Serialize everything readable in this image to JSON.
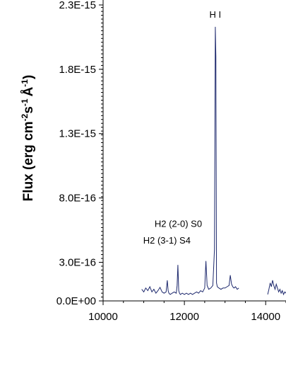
{
  "chart_data": {
    "type": "line",
    "ylabel_parts": [
      "Flux (erg cm",
      "-2",
      "s",
      "-1",
      "Å",
      "-1",
      ")"
    ],
    "xlim": [
      10000,
      14500
    ],
    "ylim": [
      0,
      2.3e-15
    ],
    "xticks": [
      10000,
      12000,
      14000
    ],
    "xtick_labels": [
      "10000",
      "12000",
      "14000"
    ],
    "yticks": [
      0,
      3e-16,
      8e-16,
      1.3e-15,
      1.8e-15,
      2.3e-15
    ],
    "ytick_labels": [
      "0.0E+00",
      "3.0E-16",
      "8.0E-16",
      "1.3E-15",
      "1.8E-15",
      "2.3E-15"
    ],
    "grid": false,
    "series_color": "#1f2a6e",
    "series": [
      {
        "segments": [
          {
            "x": [
              10950,
              11000,
              11050,
              11100,
              11150,
              11200,
              11250,
              11300,
              11350,
              11400,
              11450,
              11500,
              11550,
              11580,
              11600,
              11620,
              11650,
              11700,
              11750,
              11800,
              11820,
              11840,
              11860,
              11880,
              11900,
              11950,
              12000,
              12050,
              12100,
              12150,
              12200,
              12250,
              12300,
              12350,
              12400,
              12450,
              12500,
              12530,
              12560,
              12600,
              12650,
              12700,
              12740,
              12760,
              12775,
              12790,
              12810,
              12850,
              12900,
              12950,
              13000,
              13050,
              13100,
              13130,
              13160,
              13190,
              13220,
              13260,
              13300,
              13340
            ],
            "y": [
              9e-17,
              7e-17,
              1e-16,
              8e-17,
              1.1e-16,
              7e-17,
              9e-17,
              6e-17,
              8e-17,
              1.05e-16,
              7e-17,
              6e-17,
              7e-17,
              1.6e-16,
              8e-17,
              6e-17,
              5e-17,
              6e-17,
              7e-17,
              6e-17,
              1.2e-16,
              2.8e-16,
              8e-17,
              6e-17,
              5e-17,
              6e-17,
              5e-17,
              6e-17,
              5e-17,
              6e-17,
              5e-17,
              6e-17,
              7e-17,
              6e-17,
              8e-17,
              7e-17,
              1e-16,
              3.1e-16,
              1.2e-16,
              9e-17,
              1e-16,
              1.2e-16,
              4e-16,
              2.13e-15,
              1.9e-15,
              1.4e-16,
              1.1e-16,
              1e-16,
              9e-17,
              1e-16,
              1e-16,
              1.1e-16,
              1.2e-16,
              2e-16,
              1.3e-16,
              1.1e-16,
              1e-16,
              1.1e-16,
              9e-17,
              1e-16
            ]
          },
          {
            "x": [
              14050,
              14080,
              14110,
              14140,
              14170,
              14200,
              14230,
              14260,
              14290,
              14320,
              14350,
              14380,
              14410,
              14440,
              14470,
              14500
            ],
            "y": [
              5e-17,
              9e-17,
              1.4e-16,
              1.1e-16,
              1.6e-16,
              1.2e-16,
              9e-17,
              1.3e-16,
              1e-16,
              7e-17,
              9e-17,
              6e-17,
              8e-17,
              5e-17,
              7e-17,
              6e-17
            ]
          }
        ]
      }
    ],
    "annotations": [
      {
        "text": "H I",
        "x": 12760,
        "y_line_top": 2.13e-15,
        "y_label": 2.2e-15
      },
      {
        "text": "H2 (2-0) S0",
        "x": 11850,
        "y_line_top": 5.5e-16,
        "y_label": 5.75e-16
      },
      {
        "text": "H2 (3-1) S4",
        "x": 11570,
        "y_line_top": 4.2e-16,
        "y_label": 4.45e-16
      }
    ]
  }
}
